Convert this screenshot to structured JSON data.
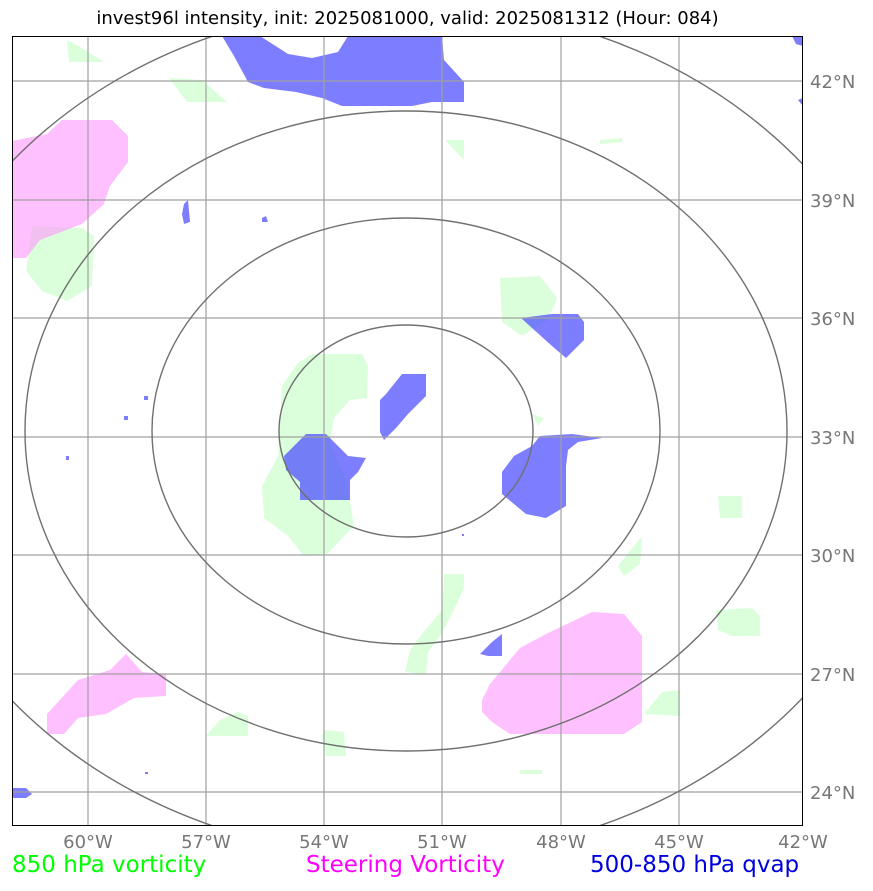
{
  "title": "invest96l intensity, init: 2025081000, valid: 2025081312 (Hour: 084)",
  "map": {
    "lat_ticks": [
      "42°N",
      "39°N",
      "36°N",
      "33°N",
      "30°N",
      "27°N",
      "24°N"
    ],
    "lon_ticks": [
      "60°W",
      "57°W",
      "54°W",
      "51°W",
      "48°W",
      "45°W",
      "42°W"
    ],
    "lat_range": [
      23,
      43
    ],
    "lon_range": [
      -62,
      -42
    ],
    "range_rings": 4,
    "fields": [
      {
        "name": "850 hPa vorticity",
        "color": "#ccffcc"
      },
      {
        "name": "Steering Vorticity",
        "color": "#ff99ff"
      },
      {
        "name": "500-850 hPa qvap",
        "color": "#4b4bff"
      }
    ]
  },
  "legend": {
    "vort850": {
      "label": "850 hPa vorticity",
      "color": "#00ff00"
    },
    "steering": {
      "label": "Steering Vorticity",
      "color": "#ff00ff"
    },
    "qvap": {
      "label": "500-850 hPa qvap",
      "color": "#0000dd"
    }
  }
}
